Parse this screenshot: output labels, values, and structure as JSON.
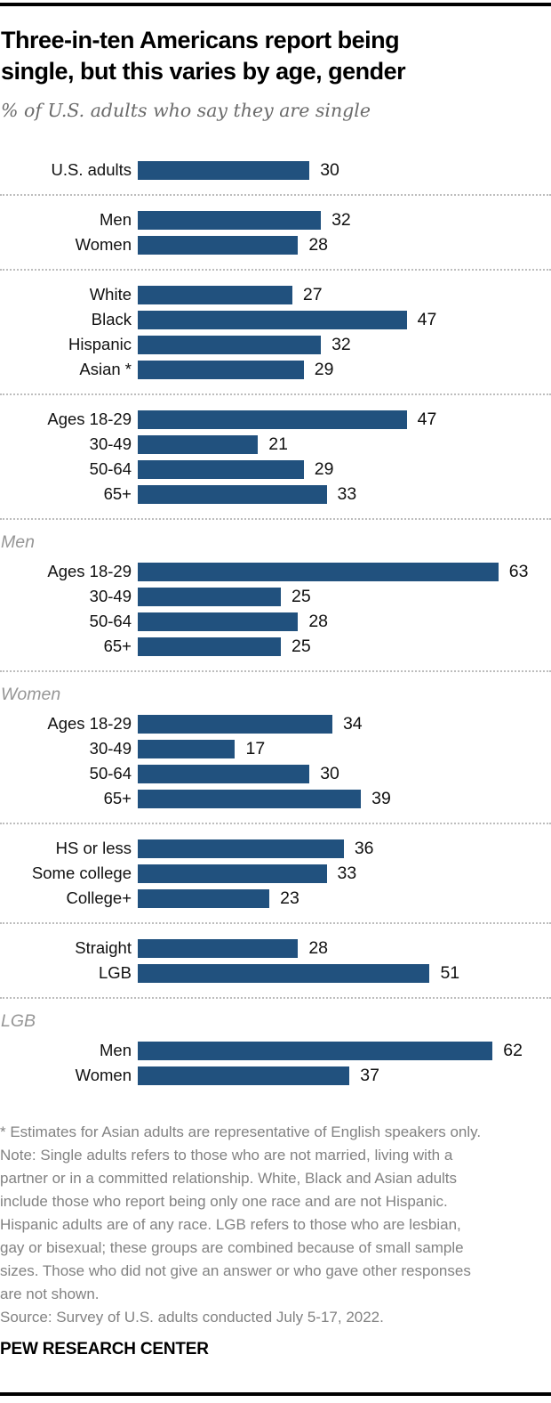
{
  "chart_data": {
    "type": "bar",
    "orientation": "horizontal",
    "title": "Three-in-ten Americans report being single, but this varies by age, gender",
    "subtitle": "% of U.S. adults who say they are single",
    "unit": "%",
    "xlim": [
      0,
      70
    ],
    "grid": false,
    "legend": "none",
    "bar_color": "#21517e",
    "groups": [
      {
        "header": "",
        "rows": [
          {
            "label": "U.S. adults",
            "value": 30
          }
        ]
      },
      {
        "header": "",
        "rows": [
          {
            "label": "Men",
            "value": 32
          },
          {
            "label": "Women",
            "value": 28
          }
        ]
      },
      {
        "header": "",
        "rows": [
          {
            "label": "White",
            "value": 27
          },
          {
            "label": "Black",
            "value": 47
          },
          {
            "label": "Hispanic",
            "value": 32
          },
          {
            "label": "Asian *",
            "value": 29
          }
        ]
      },
      {
        "header": "",
        "rows": [
          {
            "label": "Ages 18-29",
            "value": 47
          },
          {
            "label": "30-49",
            "value": 21
          },
          {
            "label": "50-64",
            "value": 29
          },
          {
            "label": "65+",
            "value": 33
          }
        ]
      },
      {
        "header": "Men",
        "rows": [
          {
            "label": "Ages 18-29",
            "value": 63
          },
          {
            "label": "30-49",
            "value": 25
          },
          {
            "label": "50-64",
            "value": 28
          },
          {
            "label": "65+",
            "value": 25
          }
        ]
      },
      {
        "header": "Women",
        "rows": [
          {
            "label": "Ages 18-29",
            "value": 34
          },
          {
            "label": "30-49",
            "value": 17
          },
          {
            "label": "50-64",
            "value": 30
          },
          {
            "label": "65+",
            "value": 39
          }
        ]
      },
      {
        "header": "",
        "rows": [
          {
            "label": "HS or less",
            "value": 36
          },
          {
            "label": "Some college",
            "value": 33
          },
          {
            "label": "College+",
            "value": 23
          }
        ]
      },
      {
        "header": "",
        "rows": [
          {
            "label": "Straight",
            "value": 28
          },
          {
            "label": "LGB",
            "value": 51
          }
        ]
      },
      {
        "header": "LGB",
        "rows": [
          {
            "label": "Men",
            "value": 62
          },
          {
            "label": "Women",
            "value": 37
          }
        ]
      }
    ]
  },
  "footer": {
    "asterisk_note": "* Estimates for Asian adults are representative of English speakers only.",
    "note": "Note: Single adults refers to those who are not married, living with a partner or in a committed relationship. White, Black and Asian adults include those who report being only one race and are not Hispanic. Hispanic adults are of any race. LGB refers to those who are lesbian, gay or bisexual; these groups are combined because of small sample sizes. Those who did not give an answer or who gave other responses are not shown.",
    "source": "Source: Survey of U.S. adults conducted July 5-17, 2022.",
    "branding": "PEW RESEARCH CENTER"
  }
}
